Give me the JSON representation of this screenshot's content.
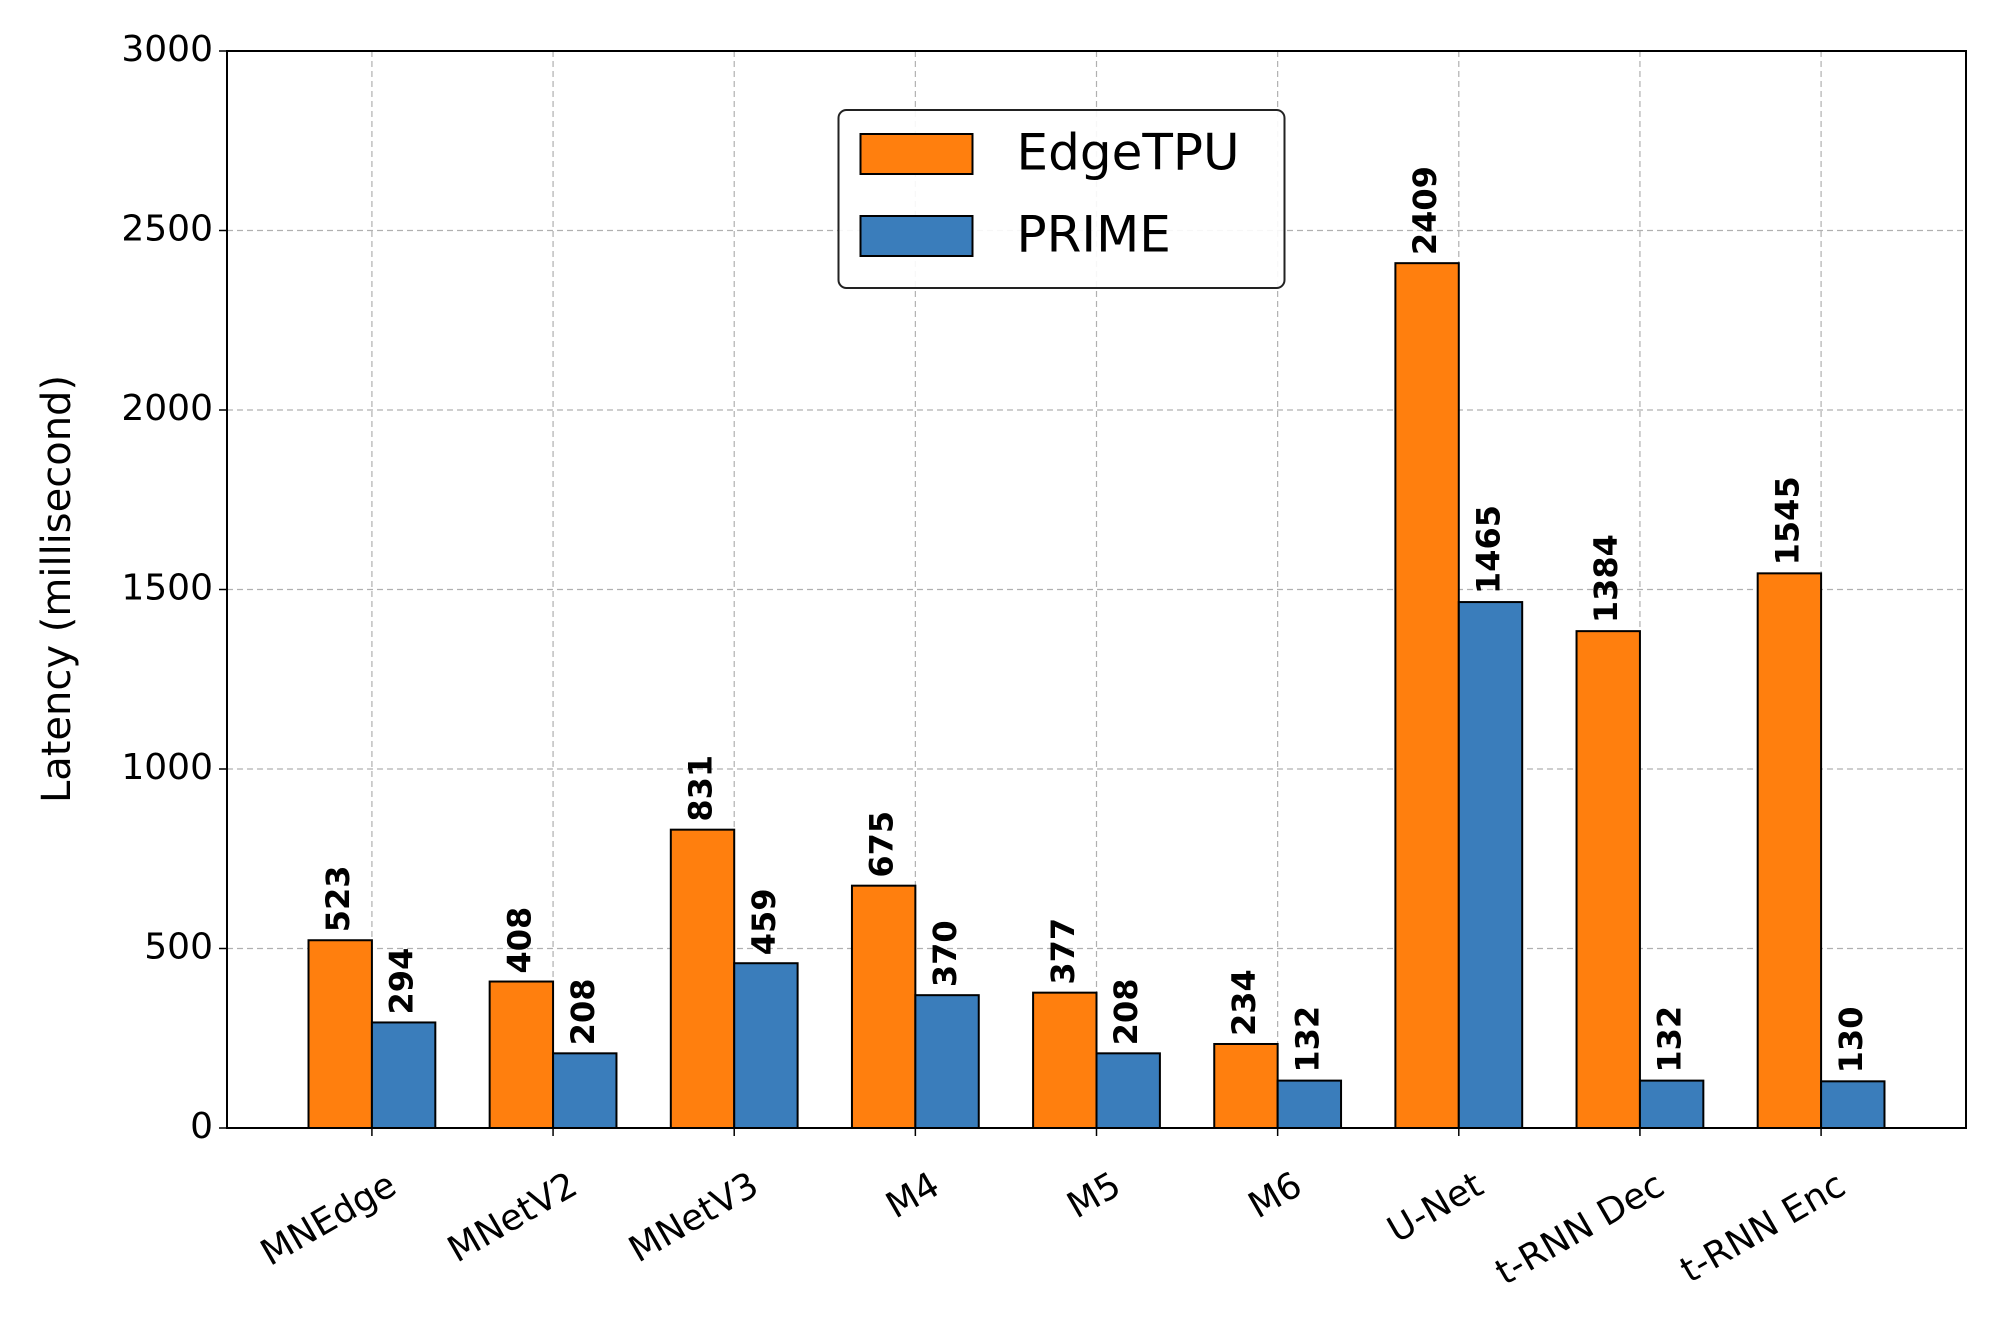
{
  "chart_data": {
    "type": "bar",
    "y_label": "Latency (millisecond)",
    "categories": [
      "MNEdge",
      "MNetV2",
      "MNetV3",
      "M4",
      "M5",
      "M6",
      "U-Net",
      "t-RNN Dec",
      "t-RNN Enc"
    ],
    "series": [
      {
        "name": "EdgeTPU",
        "color": "#ff7f0e",
        "values": [
          523,
          408,
          831,
          675,
          377,
          234,
          2409,
          1384,
          1545
        ]
      },
      {
        "name": "PRIME",
        "color": "#3a7dbb",
        "values": [
          294,
          208,
          459,
          370,
          208,
          132,
          1465,
          132,
          130
        ]
      }
    ],
    "ylim": [
      0,
      3000
    ],
    "yticks": [
      0,
      500,
      1000,
      1500,
      2000,
      2500,
      3000
    ],
    "grid": true,
    "legend": "upper center"
  }
}
